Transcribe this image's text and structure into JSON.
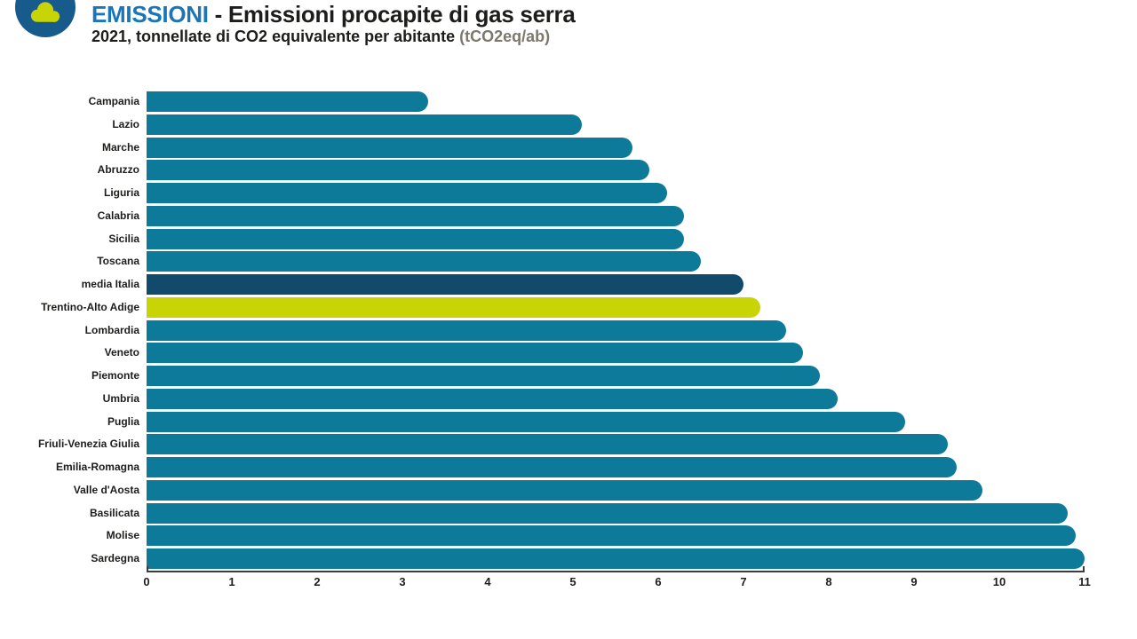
{
  "header": {
    "title_accent": "EMISSIONI",
    "title_rest": " - Emissioni procapite di gas serra",
    "subtitle": "2021, tonnellate di CO2 equivalente per abitante ",
    "subtitle_unit": "(tCO2eq/ab)",
    "logo_icon": "cloud-icon"
  },
  "colors": {
    "title_accent": "#1a76b8",
    "text_dark": "#1d1d1b",
    "subtitle_unit_gray": "#7d776c",
    "logo_circle_blue": "#175a8c",
    "logo_cloud_yellow": "#c8d405",
    "axis_dark": "#3d3d3d",
    "bar_default": "#0e7a99",
    "bar_media_italia": "#114a6b",
    "bar_trentino": "#c8d405"
  },
  "chart_data": {
    "type": "bar",
    "orientation": "horizontal",
    "title": "EMISSIONI - Emissioni procapite di gas serra",
    "subtitle": "2021, tonnellate di CO2 equivalente per abitante (tCO2eq/ab)",
    "unit": "tCO2eq/ab",
    "xlim": [
      0,
      11
    ],
    "x_ticks": [
      0,
      1,
      2,
      3,
      4,
      5,
      6,
      7,
      8,
      9,
      10,
      11
    ],
    "grid": false,
    "legend": false,
    "categories": [
      "Campania",
      "Lazio",
      "Marche",
      "Abruzzo",
      "Liguria",
      "Calabria",
      "Sicilia",
      "Toscana",
      "media Italia",
      "Trentino-Alto Adige",
      "Lombardia",
      "Veneto",
      "Piemonte",
      "Umbria",
      "Puglia",
      "Friuli-Venezia Giulia",
      "Emilia-Romagna",
      "Valle d'Aosta",
      "Basilicata",
      "Molise",
      "Sardegna"
    ],
    "values": [
      3.3,
      5.1,
      5.7,
      5.9,
      6.1,
      6.3,
      6.3,
      6.5,
      7.0,
      7.2,
      7.5,
      7.7,
      7.9,
      8.1,
      8.9,
      9.4,
      9.5,
      9.8,
      10.8,
      10.9,
      11.0
    ],
    "default_bar_color": "#0e7a99",
    "highlighted_bars": [
      {
        "category": "media Italia",
        "color": "#114a6b"
      },
      {
        "category": "Trentino-Alto Adige",
        "color": "#c8d405"
      }
    ]
  }
}
